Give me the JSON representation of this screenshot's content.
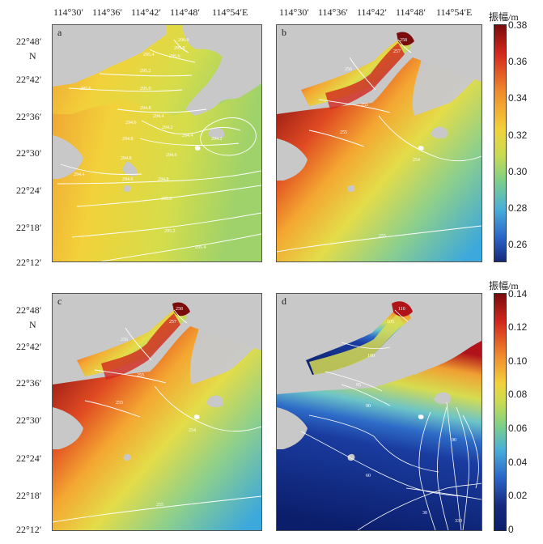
{
  "lon_ticks": [
    "114°30′",
    "114°36′",
    "114°42′",
    "114°48′",
    "114°54′E"
  ],
  "lat_ticks": [
    "22°48′",
    "22°42′",
    "22°36′",
    "22°30′",
    "22°24′",
    "22°18′",
    "22°12′"
  ],
  "north_label": "N",
  "panels": [
    {
      "letter": "a",
      "contour_labels": [
        "296.0",
        "295.8",
        "295.6",
        "295.4",
        "295.6",
        "295.2",
        "295.0",
        "294.8",
        "294.4",
        "294.2",
        "294.6",
        "294.4",
        "294.2",
        "294.8",
        "294.6",
        "294.8",
        "294.4",
        "294.6",
        "294.8",
        "295.0",
        "295.2",
        "295.4"
      ]
    },
    {
      "letter": "b",
      "contour_labels": [
        "258",
        "257",
        "256",
        "255",
        "255",
        "254",
        "255"
      ]
    },
    {
      "letter": "c",
      "contour_labels": [
        "258",
        "257",
        "256",
        "255",
        "255",
        "254",
        "255"
      ]
    },
    {
      "letter": "d",
      "contour_labels": [
        "110",
        "105",
        "100",
        "95",
        "90",
        "90",
        "60",
        "30",
        "330"
      ]
    }
  ],
  "colorbars": [
    {
      "title": "振幅/m",
      "ticks": [
        "0.38",
        "0.36",
        "0.34",
        "0.32",
        "0.30",
        "0.28",
        "0.26"
      ],
      "min": 0.25,
      "max": 0.38
    },
    {
      "title": "振幅/m",
      "ticks": [
        "0.14",
        "0.12",
        "0.10",
        "0.08",
        "0.06",
        "0.04",
        "0.02",
        "0"
      ],
      "min": 0,
      "max": 0.14
    }
  ],
  "colors": {
    "land": "#c8c8c8",
    "max": "#7a0c0c",
    "high": "#d2281e",
    "mid_high": "#f08a2c",
    "mid": "#f2d23a",
    "mid_low": "#b8d65a",
    "low": "#4aaed8",
    "min": "#0b1e6b"
  }
}
